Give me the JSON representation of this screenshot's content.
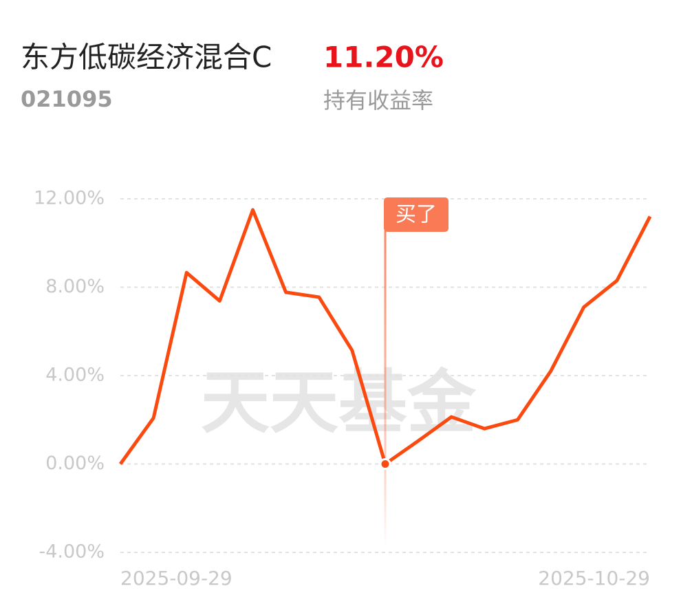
{
  "header": {
    "fund_name": "东方低碳经济混合C",
    "fund_code": "021095",
    "return_value": "11.20%",
    "return_label": "持有收益率"
  },
  "chart_data": {
    "type": "line",
    "categories": [
      "2025-09-29",
      null,
      null,
      null,
      null,
      null,
      null,
      null,
      null,
      null,
      null,
      null,
      null,
      null,
      null,
      null,
      "2025-10-29"
    ],
    "series": [
      {
        "color": "#fa4a10",
        "values": [
          0,
          2.08,
          8.66,
          7.38,
          11.5,
          7.77,
          7.55,
          5.14,
          0,
          1.05,
          2.13,
          1.6,
          2.0,
          4.2,
          7.1,
          8.3,
          11.2
        ]
      }
    ],
    "ylim": [
      -4,
      12
    ],
    "yticks": [
      {
        "value": -4,
        "label": "-4.00%"
      },
      {
        "value": 0,
        "label": "0.00%"
      },
      {
        "value": 4,
        "label": "4.00%"
      },
      {
        "value": 8,
        "label": "8.00%"
      },
      {
        "value": 12,
        "label": "12.00%"
      }
    ],
    "grid": true,
    "marker": {
      "text": "买了",
      "at": 8,
      "color": "#fa7a55"
    },
    "watermark": "天天基金"
  }
}
